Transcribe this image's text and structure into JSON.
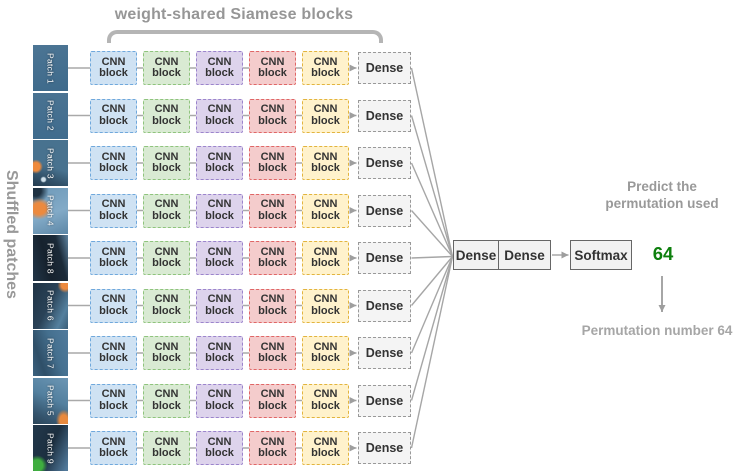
{
  "header": {
    "title": "weight-shared Siamese blocks"
  },
  "left": {
    "label": "Shuffled patches",
    "patches": [
      {
        "id": "p1",
        "label": "Patch 1"
      },
      {
        "id": "p2",
        "label": "Patch 2"
      },
      {
        "id": "p3",
        "label": "Patch 3"
      },
      {
        "id": "p4",
        "label": "Patch 4"
      },
      {
        "id": "p8",
        "label": "Patch 8"
      },
      {
        "id": "p6",
        "label": "Patch 6"
      },
      {
        "id": "p7",
        "label": "Patch 7"
      },
      {
        "id": "p5",
        "label": "Patch 5"
      },
      {
        "id": "p9",
        "label": "Patch 9"
      }
    ]
  },
  "network": {
    "cnn_block_label": "CNN\nblock",
    "row_dense_label": "Dense",
    "columns": [
      {
        "name": "cnn-blue",
        "fill": "#cfe2f3",
        "border": "#6fa8dc"
      },
      {
        "name": "cnn-green",
        "fill": "#d9ead3",
        "border": "#8fc47d"
      },
      {
        "name": "cnn-purple",
        "fill": "#ddd3ec",
        "border": "#9b84cc"
      },
      {
        "name": "cnn-red",
        "fill": "#f4cccc",
        "border": "#e06666"
      },
      {
        "name": "cnn-yellow",
        "fill": "#fff2cc",
        "border": "#e2b43e"
      }
    ]
  },
  "head": {
    "dense1": "Dense",
    "dense2": "Dense",
    "softmax": "Softmax",
    "prediction": "64"
  },
  "annotations": {
    "predict_caption": "Predict the\npermutation used",
    "result_caption": "Permutation number 64"
  },
  "colors": {
    "wire": "#a9a9a9",
    "fan_wire": "#a6a6a6",
    "arrowhead": "#9e9e9e",
    "brace": "#b5b5b5",
    "title_gray": "#969696",
    "caption_gray": "#9a9a9a",
    "prediction_green": "#0d7f0d"
  }
}
